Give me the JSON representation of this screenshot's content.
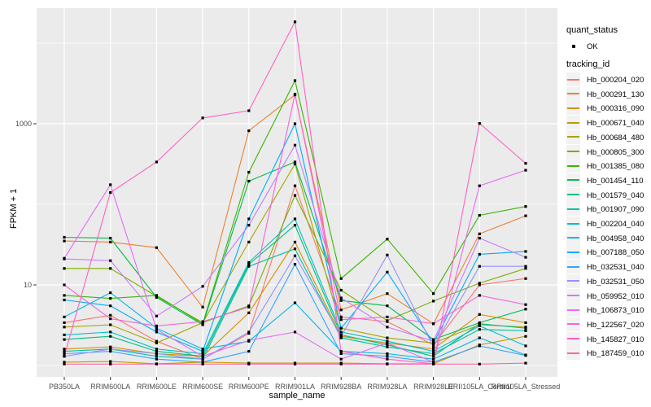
{
  "figure": {
    "background": "#FFFFFF",
    "panel_background": "#EBEBEB",
    "grid_color": "#FFFFFF",
    "point_color": "#000000",
    "axis_text_color": "#4D4D4D",
    "legend_key_background": "#F2F2F2"
  },
  "chart_data": {
    "type": "line",
    "title": "",
    "xlabel": "sample_name",
    "ylabel": "FPKM + 1",
    "y_scale": "log10",
    "ylim": [
      0.72,
      27000
    ],
    "grid": true,
    "legend_position": "right",
    "y_ticks": [
      {
        "label": "1000",
        "value": 1000
      },
      {
        "label": "10",
        "value": 10
      }
    ],
    "y_minor_gridlines": [
      1,
      100,
      10000
    ],
    "categories": [
      "PB350LA",
      "RRIM600LA",
      "RRIM600LE",
      "RRIM600SE",
      "RRIM600PE",
      "RRIM901LA",
      "RRIM928BA",
      "RRIM928LA",
      "RRIM928LE",
      "RRII105LA_Control",
      "RRII105LA_Stressed"
    ],
    "legend": {
      "shape_title": "quant_status",
      "shape_entries": [
        {
          "label": "OK"
        }
      ],
      "color_title": "tracking_id"
    },
    "series": [
      {
        "name": "Hb_000204_020",
        "color": "#F8766D",
        "values": [
          3.4,
          4.2,
          2.0,
          1.2,
          2.5,
          170,
          4.0,
          3.5,
          1.8,
          10,
          12
        ]
      },
      {
        "name": "Hb_000291_130",
        "color": "#EA8331",
        "values": [
          35,
          34,
          29,
          5.3,
          818,
          2280,
          4.9,
          7.8,
          3.3,
          43,
          72
        ]
      },
      {
        "name": "Hb_000316_090",
        "color": "#D89000",
        "values": [
          1.6,
          1.7,
          1.4,
          1.3,
          4.5,
          34,
          2.3,
          1.9,
          1.6,
          4.3,
          3.4
        ]
      },
      {
        "name": "Hb_000671_040",
        "color": "#C09B00",
        "values": [
          1.1,
          1.12,
          1.05,
          1.1,
          1.07,
          1.07,
          1.07,
          1.05,
          1.05,
          1.8,
          2.3
        ]
      },
      {
        "name": "Hb_000684_480",
        "color": "#A3A500",
        "values": [
          3.0,
          3.2,
          1.9,
          3.4,
          34,
          316,
          2.9,
          2.2,
          1.9,
          3.2,
          3.0
        ]
      },
      {
        "name": "Hb_000805_300",
        "color": "#7CAE00",
        "values": [
          16,
          16,
          7.2,
          3.4,
          5.5,
          129,
          8.6,
          3.6,
          6.3,
          10.5,
          16
        ]
      },
      {
        "name": "Hb_001385_080",
        "color": "#39B600",
        "values": [
          7.4,
          6.8,
          7.4,
          3.3,
          250,
          3430,
          12,
          37,
          7.8,
          73,
          94
        ]
      },
      {
        "name": "Hb_001454_110",
        "color": "#00BB4E",
        "values": [
          39,
          38,
          7.0,
          3.2,
          194,
          335,
          6.4,
          5.5,
          2.1,
          3.4,
          5.0
        ]
      },
      {
        "name": "Hb_001579_040",
        "color": "#00BF7D",
        "values": [
          2.1,
          2.3,
          1.5,
          1.3,
          18,
          55,
          2.4,
          1.8,
          1.3,
          3.3,
          2.9
        ]
      },
      {
        "name": "Hb_001907_090",
        "color": "#00C1A3",
        "values": [
          1.5,
          1.6,
          1.3,
          1.2,
          17,
          28,
          2.2,
          1.7,
          1.4,
          2.8,
          2.7
        ]
      },
      {
        "name": "Hb_002204_040",
        "color": "#00BFC4",
        "values": [
          2.4,
          2.6,
          1.6,
          1.4,
          19,
          66,
          2.6,
          2.0,
          1.5,
          3.1,
          1.75
        ]
      },
      {
        "name": "Hb_004958_040",
        "color": "#00B8E7",
        "values": [
          4.0,
          8.0,
          2.9,
          1.6,
          2.0,
          6.0,
          1.5,
          1.4,
          1.2,
          2.2,
          1.35
        ]
      },
      {
        "name": "Hb_007188_050",
        "color": "#00ACFC",
        "values": [
          6.5,
          5.5,
          2.6,
          1.5,
          66,
          1000,
          2.9,
          14.4,
          1.9,
          24,
          26
        ]
      },
      {
        "name": "Hb_032531_040",
        "color": "#35A2FF",
        "values": [
          1.4,
          1.5,
          1.2,
          1.1,
          1.5,
          18,
          1.4,
          1.3,
          1.1,
          1.75,
          1.33
        ]
      },
      {
        "name": "Hb_032531_050",
        "color": "#9590FF",
        "values": [
          1.3,
          1.6,
          1.4,
          1.2,
          2.6,
          23,
          2.3,
          23.5,
          1.7,
          17,
          17
        ]
      },
      {
        "name": "Hb_059952_010",
        "color": "#C77CFF",
        "values": [
          21,
          20,
          4.1,
          9.6,
          55,
          542,
          6.9,
          3.0,
          2.0,
          38,
          22
        ]
      },
      {
        "name": "Hb_106873_010",
        "color": "#E76BF3",
        "values": [
          21.4,
          175,
          2.8,
          1.3,
          2.05,
          2.6,
          1.2,
          1.9,
          1.1,
          170,
          265
        ]
      },
      {
        "name": "Hb_122567_020",
        "color": "#FA62DB",
        "values": [
          10,
          3.8,
          3.1,
          3.5,
          5.3,
          2326,
          3.7,
          4.0,
          3.3,
          7.4,
          5.7
        ]
      },
      {
        "name": "Hb_145827_010",
        "color": "#FF61C3",
        "values": [
          1.3,
          140,
          335,
          1180,
          1450,
          18400,
          1.5,
          1.2,
          1.05,
          1010,
          322
        ]
      },
      {
        "name": "Hb_187459_010",
        "color": "#FF67A4",
        "values": [
          1.04,
          1.04,
          1.04,
          1.04,
          1.04,
          1.04,
          1.04,
          1.04,
          1.04,
          1.04,
          1.07
        ]
      }
    ]
  }
}
